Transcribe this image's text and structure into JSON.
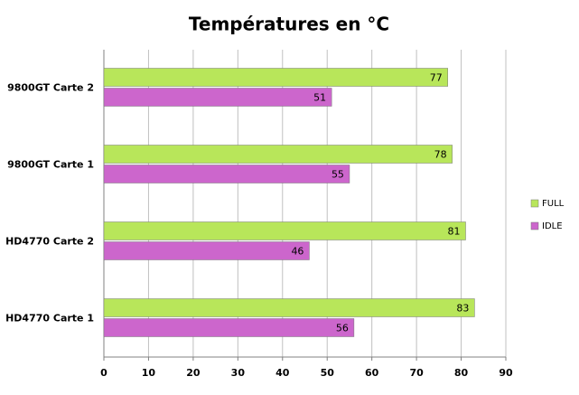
{
  "chart_data": {
    "type": "bar",
    "orientation": "horizontal",
    "title": "Températures en °C",
    "categories": [
      "9800GT Carte 2",
      "9800GT Carte 1",
      "HD4770 Carte 2",
      "HD4770 Carte 1"
    ],
    "series": [
      {
        "name": "FULL",
        "color": "#b8e65a",
        "values": [
          77,
          78,
          81,
          83
        ]
      },
      {
        "name": "IDLE",
        "color": "#cc66cc",
        "values": [
          51,
          55,
          46,
          56
        ]
      }
    ],
    "xlim": [
      0,
      90
    ],
    "xticks": [
      0,
      10,
      20,
      30,
      40,
      50,
      60,
      70,
      80,
      90
    ],
    "grid": true,
    "legend": "right"
  }
}
